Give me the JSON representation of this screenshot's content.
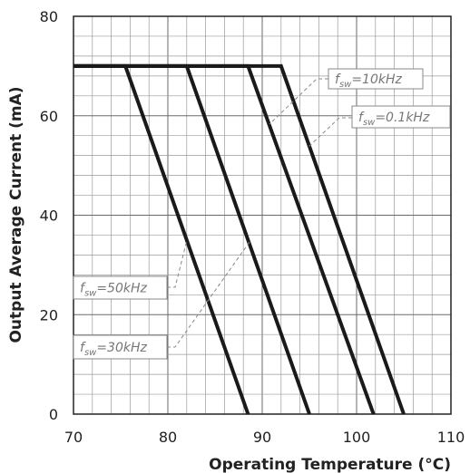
{
  "chart_data": {
    "type": "line",
    "xlabel": "Operating Temperature (°C)",
    "ylabel": "Output Average Current (mA)",
    "xlim": [
      70,
      110
    ],
    "ylim": [
      0,
      80
    ],
    "xticks": [
      70,
      80,
      90,
      100,
      110
    ],
    "yticks": [
      0,
      20,
      40,
      60,
      80
    ],
    "grid": true,
    "line_color": "#1a1a1a",
    "grid_color": "#9a9a9a",
    "annotation_color": "#888888",
    "series": [
      {
        "name": "fsw=50kHz",
        "label_main": "f",
        "label_sub": "sw",
        "label_rest": "=50kHz",
        "x": [
          70,
          75.5,
          88.5
        ],
        "y": [
          70,
          70,
          0
        ]
      },
      {
        "name": "fsw=30kHz",
        "label_main": "f",
        "label_sub": "sw",
        "label_rest": "=30kHz",
        "x": [
          70,
          82,
          95
        ],
        "y": [
          70,
          70,
          0
        ]
      },
      {
        "name": "fsw=10kHz",
        "label_main": "f",
        "label_sub": "sw",
        "label_rest": "=10kHz",
        "x": [
          70,
          88.5,
          101.8
        ],
        "y": [
          70,
          70,
          0
        ]
      },
      {
        "name": "fsw=0.1kHz",
        "label_main": "f",
        "label_sub": "sw",
        "label_rest": "=0.1kHz",
        "x": [
          70,
          92,
          105
        ],
        "y": [
          70,
          70,
          0
        ]
      }
    ]
  }
}
